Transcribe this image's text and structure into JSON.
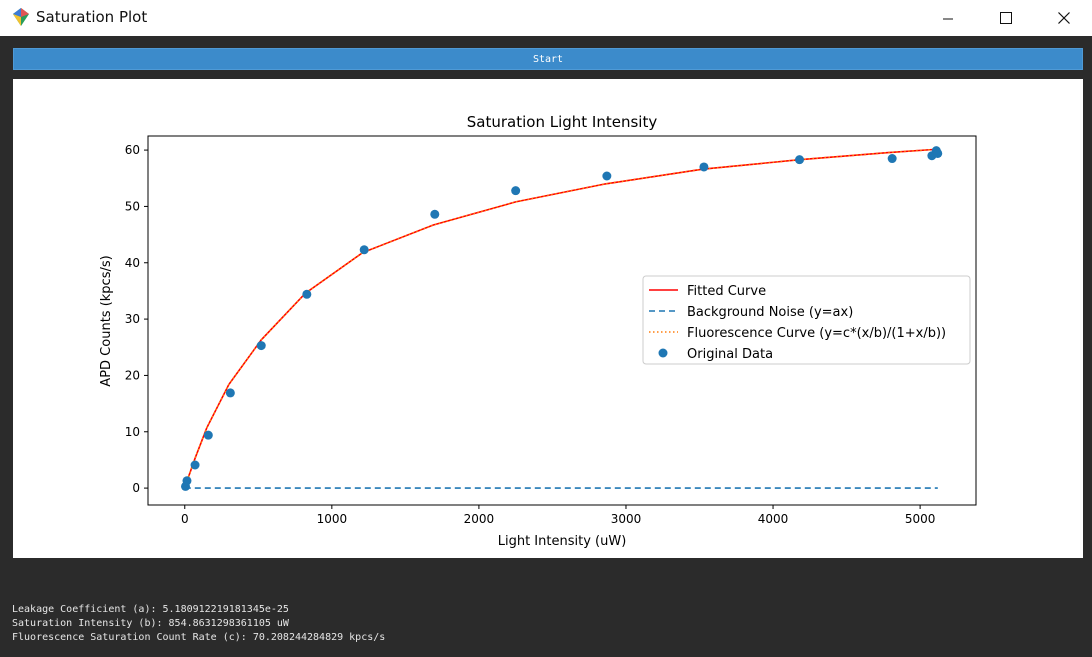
{
  "window": {
    "title": "Saturation Plot",
    "controls": {
      "minimize": "minimize",
      "maximize": "maximize",
      "close": "close"
    }
  },
  "toolbar": {
    "start_label": "Start"
  },
  "chart_data": {
    "type": "line",
    "title": "Saturation Light Intensity",
    "xlabel": "Light Intensity (uW)",
    "ylabel": "APD Counts (kpcs/s)",
    "xlim": [
      -250,
      5380
    ],
    "ylim": [
      -3,
      62.5
    ],
    "xticks": [
      0,
      1000,
      2000,
      3000,
      4000,
      5000
    ],
    "yticks": [
      0,
      10,
      20,
      30,
      40,
      50,
      60
    ],
    "grid": false,
    "legend_position": "center-right",
    "legend": [
      "Fitted Curve",
      "Background Noise (y=ax)",
      "Fluorescence Curve (y=c*(x/b)/(1+x/b))",
      "Original Data"
    ],
    "series": [
      {
        "name": "Fitted Curve",
        "kind": "line",
        "color": "#ff0000",
        "style": "solid",
        "x": [
          0,
          10,
          20,
          70,
          150,
          300,
          520,
          820,
          1210,
          1690,
          2250,
          2860,
          3520,
          4180,
          4810,
          5090,
          5110,
          5120
        ],
        "y": [
          0,
          0.8,
          1.6,
          5.3,
          10.7,
          18.4,
          26.3,
          34.6,
          41.8,
          46.7,
          50.8,
          54.0,
          56.6,
          58.3,
          59.6,
          60.1,
          60.1,
          60.2
        ]
      },
      {
        "name": "Background Noise (y=ax)",
        "kind": "line",
        "color": "#1f77b4",
        "style": "dashed",
        "x": [
          0,
          5120
        ],
        "y": [
          0,
          0
        ]
      },
      {
        "name": "Fluorescence Curve (y=c*(x/b)/(1+x/b))",
        "kind": "line",
        "color": "#ff7f0e",
        "style": "dotted",
        "x": [
          0,
          10,
          20,
          70,
          150,
          300,
          520,
          820,
          1210,
          1690,
          2250,
          2860,
          3520,
          4180,
          4810,
          5090,
          5110,
          5120
        ],
        "y": [
          0,
          0.8,
          1.6,
          5.3,
          10.7,
          18.4,
          26.3,
          34.6,
          41.8,
          46.7,
          50.8,
          54.0,
          56.6,
          58.3,
          59.6,
          60.1,
          60.1,
          60.2
        ]
      },
      {
        "name": "Original Data",
        "kind": "scatter",
        "color": "#1f77b4",
        "x": [
          5,
          15,
          70,
          160,
          310,
          520,
          830,
          1220,
          1700,
          2250,
          2870,
          3530,
          4180,
          4810,
          5080,
          5110,
          5120
        ],
        "y": [
          0.3,
          1.3,
          4.1,
          9.4,
          16.9,
          25.3,
          34.4,
          42.3,
          48.6,
          52.8,
          55.4,
          57.0,
          58.3,
          58.5,
          59.0,
          59.9,
          59.4
        ]
      }
    ]
  },
  "results": {
    "line1": "Leakage Coefficient (a): 5.180912219181345e-25",
    "line2": "Saturation Intensity (b): 854.8631298361105 uW",
    "line3": "Fluorescence Saturation Count Rate (c): 70.208244284829 kpcs/s"
  }
}
